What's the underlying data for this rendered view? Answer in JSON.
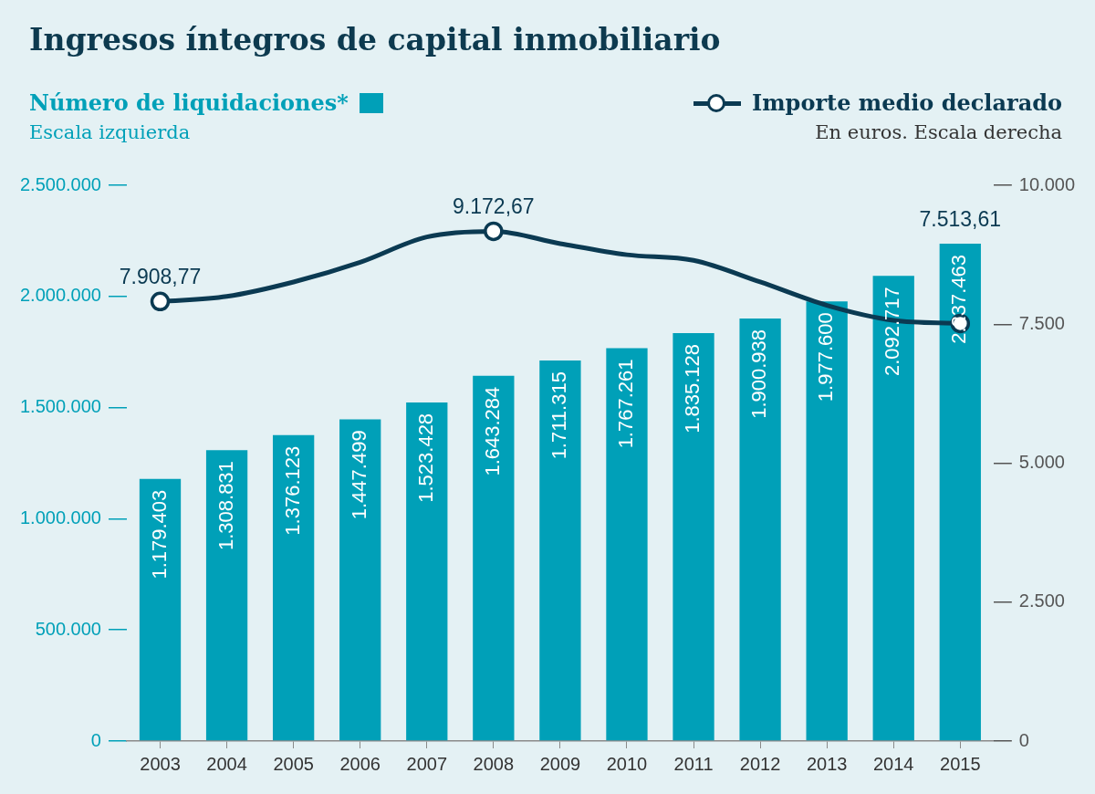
{
  "chart_data": {
    "type": "bar",
    "title": "Ingresos íntegros de capital inmobiliario",
    "ylabel": "Escala izquierda",
    "y2label": "En euros. Escala derecha",
    "categories": [
      "2003",
      "2004",
      "2005",
      "2006",
      "2007",
      "2008",
      "2009",
      "2010",
      "2011",
      "2012",
      "2013",
      "2014",
      "2015"
    ],
    "series": [
      {
        "name": "Número de liquidaciones*",
        "type": "bar",
        "color": "#00a0b8",
        "axis": "y",
        "data_labels": true,
        "values": [
          1179403,
          1308831,
          1376123,
          1447499,
          1523428,
          1643284,
          1711315,
          1767261,
          1835128,
          1900938,
          1977600,
          2092717,
          2237463
        ],
        "value_labels": [
          "1.179.403",
          "1.308.831",
          "1.376.123",
          "1.447.499",
          "1.523.428",
          "1.643.284",
          "1.711.315",
          "1.767.261",
          "1.835.128",
          "1.900.938",
          "1.977.600",
          "2.092.717",
          "2.237.463"
        ]
      },
      {
        "name": "Importe medio declarado",
        "type": "line",
        "color": "#0b3a52",
        "axis": "y2",
        "marker": "circle",
        "line_style": "solid",
        "data_labels": true,
        "values": [
          7908.77,
          8000,
          8260,
          8615,
          9070,
          9172.67,
          8950,
          8750,
          8650,
          8260,
          7840,
          7570,
          7513.61
        ],
        "value_labels": [
          "7.908,77",
          null,
          null,
          null,
          null,
          "9.172,67",
          null,
          null,
          null,
          null,
          null,
          null,
          "7.513,61"
        ]
      }
    ],
    "ylim": [
      0,
      2500000
    ],
    "yticks": [
      0,
      {
        "value": 500000,
        "label": "500.000"
      },
      {
        "value": 1000000,
        "label": "1.000.000"
      },
      {
        "value": 1500000,
        "label": "1.500.000"
      },
      {
        "value": 2000000,
        "label": "2.000.000"
      },
      {
        "value": 2500000,
        "label": "2.500.000"
      }
    ],
    "y2lim": [
      0,
      10000
    ],
    "y2ticks": [
      0,
      {
        "value": 2500,
        "label": "2.500"
      },
      {
        "value": 5000,
        "label": "5.000"
      },
      {
        "value": 7500,
        "label": "7.500"
      },
      {
        "value": 10000,
        "label": "10.000"
      }
    ],
    "grid": false,
    "legend": "top"
  }
}
